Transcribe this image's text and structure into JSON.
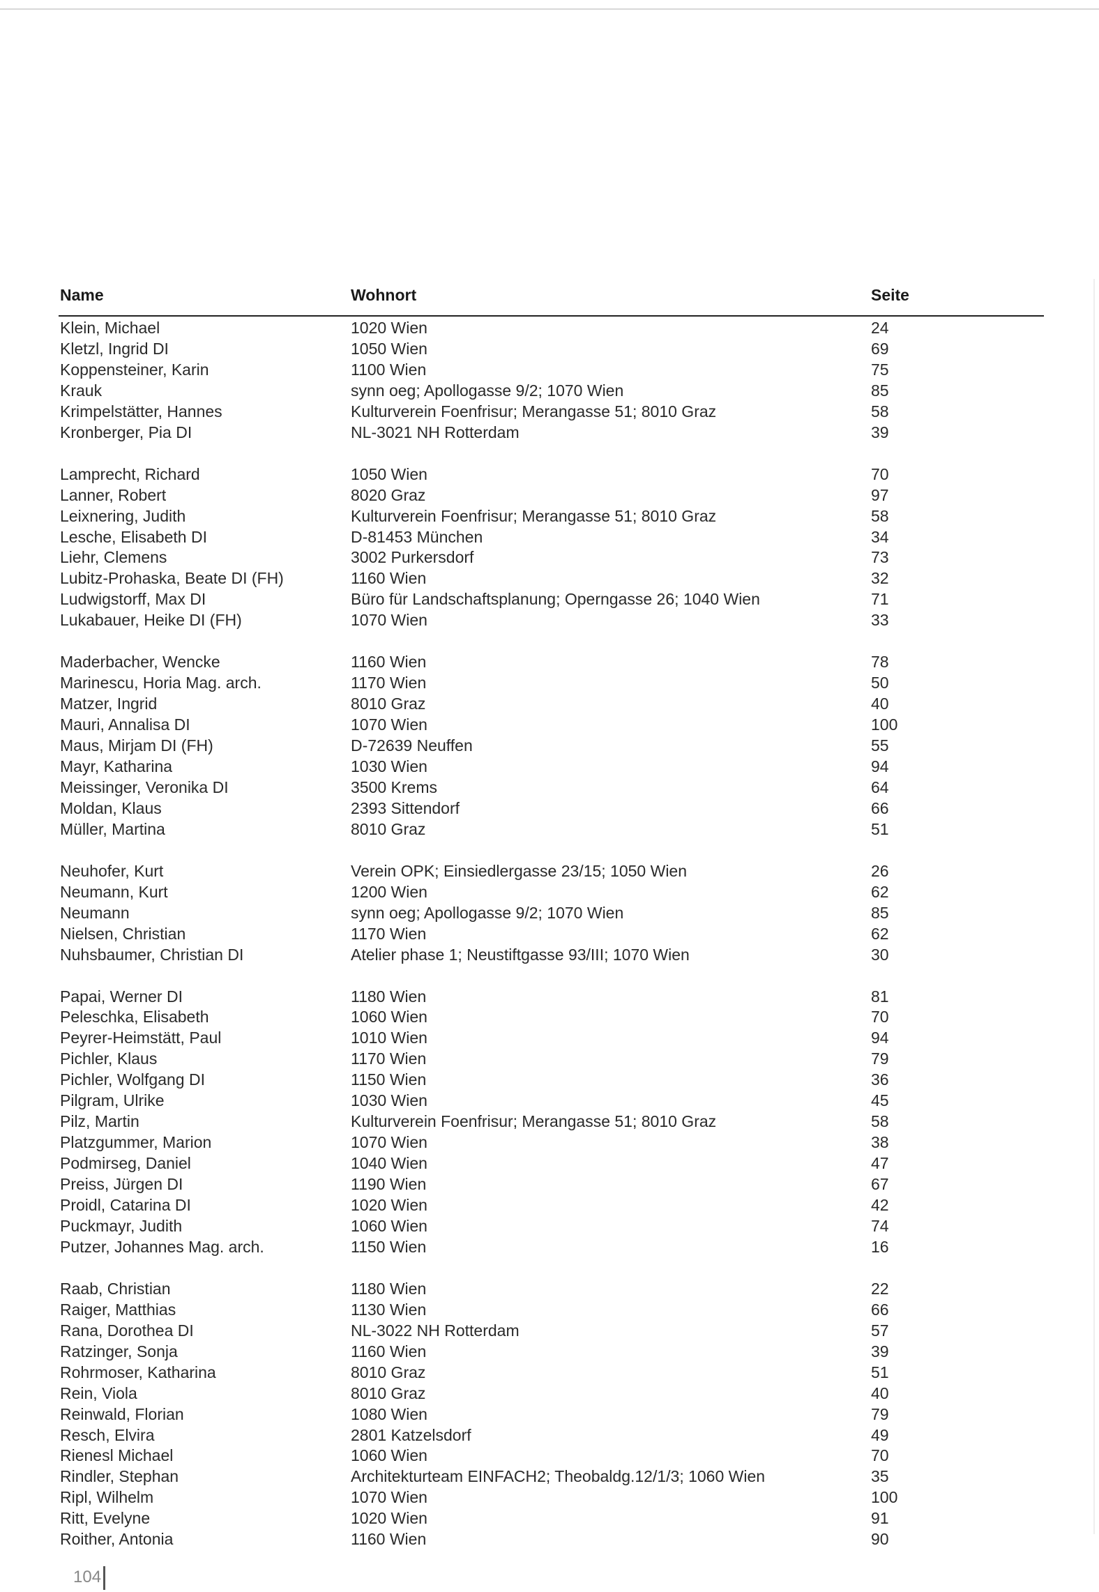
{
  "table": {
    "headers": {
      "name": "Name",
      "wohnort": "Wohnort",
      "seite": "Seite"
    },
    "groups": [
      [
        [
          "Klein, Michael",
          "1020 Wien",
          "24"
        ],
        [
          "Kletzl, Ingrid DI",
          "1050 Wien",
          "69"
        ],
        [
          "Koppensteiner, Karin",
          "1100 Wien",
          "75"
        ],
        [
          "Krauk",
          "synn oeg; Apollogasse 9/2; 1070 Wien",
          "85"
        ],
        [
          "Krimpelstätter, Hannes",
          "Kulturverein Foenfrisur; Merangasse 51; 8010 Graz",
          "58"
        ],
        [
          "Kronberger, Pia DI",
          "NL-3021 NH Rotterdam",
          "39"
        ]
      ],
      [
        [
          "Lamprecht, Richard",
          "1050 Wien",
          "70"
        ],
        [
          "Lanner, Robert",
          "8020 Graz",
          "97"
        ],
        [
          "Leixnering, Judith",
          "Kulturverein Foenfrisur; Merangasse 51; 8010 Graz",
          "58"
        ],
        [
          "Lesche, Elisabeth DI",
          "D-81453 München",
          "34"
        ],
        [
          "Liehr, Clemens",
          "3002 Purkersdorf",
          "73"
        ],
        [
          "Lubitz-Prohaska, Beate DI (FH)",
          "1160 Wien",
          "32"
        ],
        [
          "Ludwigstorff, Max DI",
          "Büro für Landschaftsplanung; Operngasse 26; 1040 Wien",
          "71"
        ],
        [
          "Lukabauer, Heike DI (FH)",
          "1070 Wien",
          "33"
        ]
      ],
      [
        [
          "Maderbacher, Wencke",
          "1160 Wien",
          "78"
        ],
        [
          "Marinescu, Horia Mag. arch.",
          "1170 Wien",
          "50"
        ],
        [
          "Matzer, Ingrid",
          "8010 Graz",
          "40"
        ],
        [
          "Mauri, Annalisa DI",
          "1070 Wien",
          "100"
        ],
        [
          "Maus, Mirjam DI (FH)",
          "D-72639 Neuffen",
          "55"
        ],
        [
          "Mayr, Katharina",
          "1030 Wien",
          "94"
        ],
        [
          "Meissinger, Veronika DI",
          "3500 Krems",
          "64"
        ],
        [
          "Moldan, Klaus",
          "2393 Sittendorf",
          "66"
        ],
        [
          "Müller, Martina",
          "8010 Graz",
          "51"
        ]
      ],
      [
        [
          "Neuhofer, Kurt",
          "Verein OPK; Einsiedlergasse 23/15; 1050 Wien",
          "26"
        ],
        [
          "Neumann, Kurt",
          "1200 Wien",
          "62"
        ],
        [
          "Neumann",
          "synn oeg; Apollogasse 9/2; 1070 Wien",
          "85"
        ],
        [
          "Nielsen, Christian",
          "1170 Wien",
          "62"
        ],
        [
          "Nuhsbaumer, Christian DI",
          "Atelier phase 1; Neustiftgasse 93/III; 1070 Wien",
          "30"
        ]
      ],
      [
        [
          "Papai, Werner DI",
          "1180 Wien",
          "81"
        ],
        [
          "Peleschka, Elisabeth",
          "1060 Wien",
          "70"
        ],
        [
          "Peyrer-Heimstätt, Paul",
          "1010 Wien",
          "94"
        ],
        [
          "Pichler, Klaus",
          "1170 Wien",
          "79"
        ],
        [
          "Pichler, Wolfgang DI",
          "1150 Wien",
          "36"
        ],
        [
          "Pilgram, Ulrike",
          "1030 Wien",
          "45"
        ],
        [
          "Pilz, Martin",
          "Kulturverein Foenfrisur; Merangasse 51; 8010 Graz",
          "58"
        ],
        [
          "Platzgummer, Marion",
          "1070 Wien",
          "38"
        ],
        [
          "Podmirseg, Daniel",
          "1040 Wien",
          "47"
        ],
        [
          "Preiss, Jürgen DI",
          "1190 Wien",
          "67"
        ],
        [
          "Proidl, Catarina DI",
          "1020 Wien",
          "42"
        ],
        [
          "Puckmayr, Judith",
          "1060 Wien",
          "74"
        ],
        [
          "Putzer, Johannes Mag. arch.",
          "1150 Wien",
          "16"
        ]
      ],
      [
        [
          "Raab, Christian",
          "1180 Wien",
          "22"
        ],
        [
          "Raiger, Matthias",
          "1130 Wien",
          "66"
        ],
        [
          "Rana, Dorothea DI",
          "NL-3022 NH Rotterdam",
          "57"
        ],
        [
          "Ratzinger, Sonja",
          "1160 Wien",
          "39"
        ],
        [
          "Rohrmoser, Katharina",
          "8010 Graz",
          "51"
        ],
        [
          "Rein, Viola",
          "8010 Graz",
          "40"
        ],
        [
          "Reinwald, Florian",
          "1080 Wien",
          "79"
        ],
        [
          "Resch, Elvira",
          "2801 Katzelsdorf",
          "49"
        ],
        [
          "Rienesl Michael",
          "1060 Wien",
          "70"
        ],
        [
          "Rindler, Stephan",
          "Architekturteam EINFACH2; Theobaldg.12/1/3; 1060 Wien",
          "35"
        ],
        [
          "Ripl, Wilhelm",
          "1070 Wien",
          "100"
        ],
        [
          "Ritt, Evelyne",
          "1020 Wien",
          "91"
        ],
        [
          "Roither, Antonia",
          "1160 Wien",
          "90"
        ]
      ]
    ]
  },
  "footer": {
    "page_number": "104"
  }
}
